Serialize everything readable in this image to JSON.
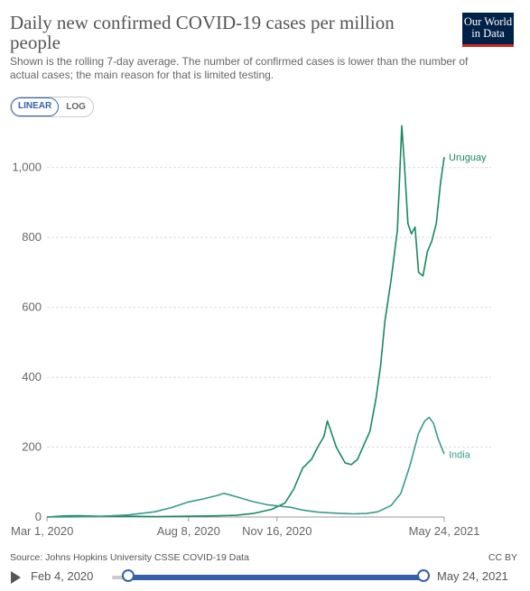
{
  "header": {
    "title": "Daily new confirmed COVID-19 cases per million people",
    "subtitle": "Shown is the rolling 7-day average. The number of confirmed cases is lower than the number of actual cases; the main reason for that is limited testing.",
    "logo_line1": "Our World",
    "logo_line2": "in Data"
  },
  "scale_toggle": {
    "linear": "LINEAR",
    "log": "LOG",
    "active": "linear"
  },
  "footer": {
    "source": "Source: Johns Hopkins University CSSE COVID-19 Data",
    "license": "CC BY"
  },
  "timeline": {
    "start_label": "Feb 4, 2020",
    "end_label": "May 24, 2021"
  },
  "colors": {
    "uruguay": "#18895e",
    "india": "#3b9a8c",
    "grid": "#dddddd",
    "accent": "#3360a9"
  },
  "chart_data": {
    "type": "line",
    "title": "Daily new confirmed COVID-19 cases per million people",
    "ylim": [
      0,
      1100
    ],
    "xlim": [
      "2020-03-01",
      "2021-05-24"
    ],
    "y_ticks": [
      0,
      200,
      400,
      600,
      800,
      1000
    ],
    "y_tick_labels": [
      "0",
      "200",
      "400",
      "600",
      "800",
      "1,000"
    ],
    "x_ticks": [
      "2020-03-01",
      "2020-08-08",
      "2020-11-16",
      "2021-05-24"
    ],
    "x_tick_labels": [
      "Mar 1, 2020",
      "Aug 8, 2020",
      "Nov 16, 2020",
      "May 24, 2021"
    ],
    "grid": "horizontal dashed",
    "legend": "line-end labels",
    "series": [
      {
        "name": "Uruguay",
        "color": "#18895e",
        "points": [
          [
            "2020-03-01",
            0
          ],
          [
            "2020-03-20",
            3
          ],
          [
            "2020-04-05",
            4
          ],
          [
            "2020-05-01",
            2
          ],
          [
            "2020-06-01",
            2
          ],
          [
            "2020-07-01",
            1
          ],
          [
            "2020-08-01",
            2
          ],
          [
            "2020-09-01",
            3
          ],
          [
            "2020-10-01",
            5
          ],
          [
            "2020-10-20",
            10
          ],
          [
            "2020-11-10",
            22
          ],
          [
            "2020-11-25",
            40
          ],
          [
            "2020-12-05",
            80
          ],
          [
            "2020-12-15",
            140
          ],
          [
            "2020-12-25",
            165
          ],
          [
            "2021-01-01",
            200
          ],
          [
            "2021-01-08",
            230
          ],
          [
            "2021-01-12",
            275
          ],
          [
            "2021-01-16",
            245
          ],
          [
            "2021-01-22",
            200
          ],
          [
            "2021-02-01",
            155
          ],
          [
            "2021-02-08",
            150
          ],
          [
            "2021-02-15",
            165
          ],
          [
            "2021-02-22",
            205
          ],
          [
            "2021-03-01",
            245
          ],
          [
            "2021-03-08",
            340
          ],
          [
            "2021-03-13",
            430
          ],
          [
            "2021-03-18",
            560
          ],
          [
            "2021-03-25",
            680
          ],
          [
            "2021-04-01",
            820
          ],
          [
            "2021-04-06",
            1120
          ],
          [
            "2021-04-09",
            1010
          ],
          [
            "2021-04-13",
            840
          ],
          [
            "2021-04-17",
            810
          ],
          [
            "2021-04-21",
            830
          ],
          [
            "2021-04-25",
            700
          ],
          [
            "2021-04-30",
            690
          ],
          [
            "2021-05-05",
            760
          ],
          [
            "2021-05-10",
            790
          ],
          [
            "2021-05-15",
            840
          ],
          [
            "2021-05-20",
            960
          ],
          [
            "2021-05-24",
            1030
          ]
        ]
      },
      {
        "name": "India",
        "color": "#3b9a8c",
        "points": [
          [
            "2020-03-01",
            0
          ],
          [
            "2020-04-01",
            0.5
          ],
          [
            "2020-05-01",
            2
          ],
          [
            "2020-06-01",
            6
          ],
          [
            "2020-07-01",
            15
          ],
          [
            "2020-07-20",
            27
          ],
          [
            "2020-08-08",
            43
          ],
          [
            "2020-08-25",
            52
          ],
          [
            "2020-09-10",
            62
          ],
          [
            "2020-09-17",
            68
          ],
          [
            "2020-10-01",
            58
          ],
          [
            "2020-10-20",
            44
          ],
          [
            "2020-11-05",
            35
          ],
          [
            "2020-11-16",
            32
          ],
          [
            "2020-12-01",
            28
          ],
          [
            "2020-12-15",
            20
          ],
          [
            "2021-01-01",
            14
          ],
          [
            "2021-01-20",
            11
          ],
          [
            "2021-02-10",
            9
          ],
          [
            "2021-02-25",
            10
          ],
          [
            "2021-03-10",
            15
          ],
          [
            "2021-03-25",
            33
          ],
          [
            "2021-04-05",
            68
          ],
          [
            "2021-04-15",
            145
          ],
          [
            "2021-04-25",
            240
          ],
          [
            "2021-05-02",
            275
          ],
          [
            "2021-05-07",
            285
          ],
          [
            "2021-05-12",
            268
          ],
          [
            "2021-05-17",
            225
          ],
          [
            "2021-05-24",
            180
          ]
        ]
      }
    ]
  }
}
